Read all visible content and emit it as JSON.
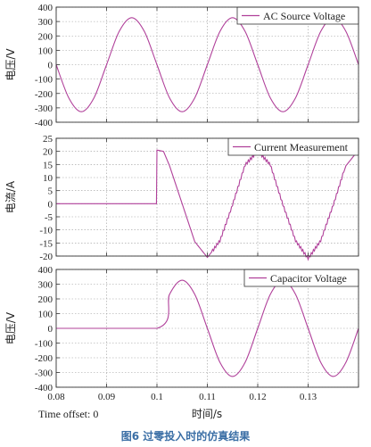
{
  "figure": {
    "caption": "图6   过零投入时的仿真结果",
    "time_offset": "Time offset: 0",
    "xlabel": "时间/s"
  },
  "chart_data": [
    {
      "type": "line",
      "ylabel": "电压/V",
      "ylim": [
        -400,
        400
      ],
      "yticks": [
        400,
        300,
        200,
        100,
        0,
        -100,
        -200,
        -300,
        -400
      ],
      "xlim": [
        0.08,
        0.14
      ],
      "grid": true,
      "legend_position": "top-right",
      "series": [
        {
          "name": "AC Source Voltage",
          "color": "#b0409a",
          "x": [
            0.08,
            0.0825,
            0.085,
            0.0875,
            0.09,
            0.0925,
            0.095,
            0.0975,
            0.1,
            0.1025,
            0.105,
            0.1075,
            0.11,
            0.1125,
            0.115,
            0.1175,
            0.12,
            0.1225,
            0.125,
            0.1275,
            0.13,
            0.1325,
            0.135,
            0.1375,
            0.14
          ],
          "y": [
            0,
            -231,
            -327,
            -231,
            0,
            231,
            327,
            231,
            0,
            -231,
            -327,
            -231,
            0,
            231,
            327,
            231,
            0,
            -231,
            -327,
            -231,
            0,
            231,
            327,
            231,
            0
          ]
        }
      ]
    },
    {
      "type": "line",
      "ylabel": "电流/A",
      "ylim": [
        -20,
        25
      ],
      "yticks": [
        25,
        20,
        15,
        10,
        5,
        0,
        -5,
        -10,
        -15,
        -20
      ],
      "xlim": [
        0.08,
        0.14
      ],
      "grid": true,
      "legend_position": "top-right",
      "series": [
        {
          "name": "Current Measurement",
          "color": "#b0409a",
          "x": [
            0.08,
            0.0999,
            0.1,
            0.1013,
            0.1025,
            0.105,
            0.1075,
            0.11,
            0.1125,
            0.115,
            0.1175,
            0.12,
            0.1225,
            0.125,
            0.1275,
            0.13,
            0.1325,
            0.135,
            0.1375,
            0.14
          ],
          "y": [
            0,
            0,
            20.5,
            20,
            14.5,
            0,
            -14.5,
            -20.5,
            -14.5,
            0,
            14.5,
            20.5,
            14.5,
            0,
            -14.5,
            -20.5,
            -14.5,
            0,
            14.5,
            20.5
          ]
        }
      ]
    },
    {
      "type": "line",
      "ylabel": "电压/V",
      "ylim": [
        -400,
        400
      ],
      "yticks": [
        400,
        300,
        200,
        100,
        0,
        -100,
        -200,
        -300,
        -400
      ],
      "xlim": [
        0.08,
        0.14
      ],
      "xticks": [
        0.08,
        0.09,
        0.1,
        0.11,
        0.12,
        0.13
      ],
      "grid": true,
      "legend_position": "top-right",
      "series": [
        {
          "name": "Capacitor Voltage",
          "color": "#b0409a",
          "x": [
            0.08,
            0.1,
            0.1025,
            0.105,
            0.1075,
            0.11,
            0.1125,
            0.115,
            0.1175,
            0.12,
            0.1225,
            0.125,
            0.1275,
            0.13,
            0.1325,
            0.135,
            0.1375,
            0.14
          ],
          "y": [
            0,
            0,
            231,
            327,
            231,
            0,
            -231,
            -327,
            -231,
            0,
            231,
            327,
            231,
            0,
            -231,
            -327,
            -231,
            0
          ]
        }
      ]
    }
  ]
}
